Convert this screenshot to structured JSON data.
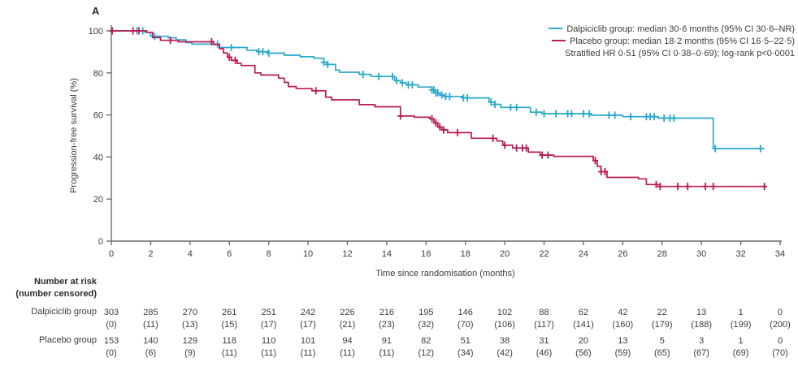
{
  "panel_label": "A",
  "y_axis": {
    "label": "Progression-free survival (%)",
    "ticks": [
      0,
      20,
      40,
      60,
      80,
      100
    ]
  },
  "x_axis": {
    "label": "Time since randomisation (months)",
    "ticks": [
      0,
      2,
      4,
      6,
      8,
      10,
      12,
      14,
      16,
      18,
      20,
      22,
      24,
      26,
      28,
      30,
      32,
      34
    ]
  },
  "legend": {
    "entries": [
      {
        "label": "Dalpiciclib group: median 30·6 months (95% CI 30·6–NR)",
        "color": "#29a8cb"
      },
      {
        "label": "Placebo group: median 18·2 months (95% CI 16·5–22·5)",
        "color": "#ba1a52"
      }
    ],
    "note": "Stratified HR 0·51 (95% CI 0·38–0·69); log-rank p<0·0001"
  },
  "risk_table": {
    "header_line1": "Number at risk",
    "header_line2": "(number censored)",
    "time_points": [
      0,
      2,
      4,
      6,
      8,
      10,
      12,
      14,
      16,
      18,
      20,
      22,
      24,
      26,
      28,
      30,
      32,
      34
    ],
    "rows": [
      {
        "label": "Dalpiciclib group",
        "at_risk": [
          "303",
          "285",
          "270",
          "261",
          "251",
          "242",
          "226",
          "216",
          "195",
          "146",
          "102",
          "88",
          "62",
          "42",
          "22",
          "13",
          "1",
          "0"
        ],
        "censored": [
          "(0)",
          "(11)",
          "(13)",
          "(15)",
          "(17)",
          "(17)",
          "(21)",
          "(23)",
          "(32)",
          "(70)",
          "(106)",
          "(117)",
          "(141)",
          "(160)",
          "(179)",
          "(188)",
          "(199)",
          "(200)"
        ]
      },
      {
        "label": "Placebo group",
        "at_risk": [
          "153",
          "140",
          "129",
          "118",
          "110",
          "101",
          "94",
          "91",
          "82",
          "51",
          "38",
          "31",
          "20",
          "13",
          "5",
          "3",
          "1",
          "0"
        ],
        "censored": [
          "(0)",
          "(6)",
          "(9)",
          "(11)",
          "(11)",
          "(11)",
          "(11)",
          "(11)",
          "(12)",
          "(34)",
          "(42)",
          "(46)",
          "(56)",
          "(59)",
          "(65)",
          "(67)",
          "(69)",
          "(70)"
        ]
      }
    ]
  },
  "chart_data": {
    "type": "line",
    "subtype": "kaplan-meier-step",
    "title": "",
    "xlabel": "Time since randomisation (months)",
    "ylabel": "Progression-free survival (%)",
    "xlim": [
      0,
      34
    ],
    "ylim": [
      0,
      100
    ],
    "x_ticks": [
      0,
      2,
      4,
      6,
      8,
      10,
      12,
      14,
      16,
      18,
      20,
      22,
      24,
      26,
      28,
      30,
      32,
      34
    ],
    "y_ticks": [
      0,
      20,
      40,
      60,
      80,
      100
    ],
    "grid": false,
    "legend_position": "top-right",
    "axis_color": "#6b6b6b",
    "series": [
      {
        "name": "Dalpiciclib group",
        "color": "#29a8cb",
        "median_months": "30·6",
        "ci": "30·6–NR",
        "steps": [
          [
            0,
            100
          ],
          [
            1.7,
            99.3
          ],
          [
            2.0,
            97.4
          ],
          [
            2.9,
            96.7
          ],
          [
            3.3,
            95.7
          ],
          [
            3.8,
            94.4
          ],
          [
            4.1,
            93.7
          ],
          [
            5.5,
            92.1
          ],
          [
            6.9,
            90.8
          ],
          [
            7.4,
            90.1
          ],
          [
            8.0,
            89.4
          ],
          [
            8.8,
            88.4
          ],
          [
            9.6,
            87.7
          ],
          [
            10.3,
            87.0
          ],
          [
            10.8,
            85.0
          ],
          [
            11.0,
            84.0
          ],
          [
            11.4,
            81.3
          ],
          [
            11.6,
            80.3
          ],
          [
            12.6,
            79.3
          ],
          [
            13.2,
            78.3
          ],
          [
            14.4,
            76.3
          ],
          [
            14.7,
            75.3
          ],
          [
            15.0,
            74.3
          ],
          [
            15.6,
            73.3
          ],
          [
            16.3,
            71.9
          ],
          [
            16.5,
            70.5
          ],
          [
            16.7,
            69.5
          ],
          [
            16.9,
            68.8
          ],
          [
            17.9,
            68.1
          ],
          [
            19.2,
            66.1
          ],
          [
            19.5,
            65.0
          ],
          [
            19.8,
            63.6
          ],
          [
            21.3,
            61.3
          ],
          [
            21.9,
            60.6
          ],
          [
            24.4,
            59.9
          ],
          [
            26.0,
            59.2
          ],
          [
            27.8,
            58.5
          ],
          [
            30.6,
            44.0
          ],
          [
            33.2,
            44.0
          ]
        ],
        "censor_times": [
          1.3,
          1.6,
          2.2,
          5.4,
          6.1,
          7.5,
          7.7,
          8.0,
          10.8,
          11.0,
          12.8,
          13.6,
          14.3,
          14.5,
          14.8,
          15.1,
          15.3,
          16.3,
          16.4,
          16.5,
          16.6,
          16.8,
          17.0,
          17.2,
          17.9,
          18.1,
          19.3,
          19.5,
          20.3,
          20.6,
          21.6,
          22.0,
          22.6,
          23.2,
          23.4,
          24.0,
          24.3,
          25.3,
          25.6,
          26.4,
          27.2,
          27.4,
          27.6,
          28.1,
          28.4,
          28.6,
          30.7,
          33.0
        ]
      },
      {
        "name": "Placebo group",
        "color": "#ba1a52",
        "median_months": "18·2",
        "ci": "16·5–22·5",
        "steps": [
          [
            0,
            100
          ],
          [
            1.8,
            99.3
          ],
          [
            2.1,
            96.8
          ],
          [
            2.5,
            95.5
          ],
          [
            3.4,
            94.8
          ],
          [
            5.2,
            93.5
          ],
          [
            5.5,
            91.5
          ],
          [
            5.7,
            89.5
          ],
          [
            5.9,
            87.5
          ],
          [
            6.1,
            86.0
          ],
          [
            6.4,
            84.5
          ],
          [
            6.6,
            83.5
          ],
          [
            7.3,
            80.0
          ],
          [
            7.6,
            79.0
          ],
          [
            8.5,
            77.5
          ],
          [
            8.8,
            75.5
          ],
          [
            9.0,
            73.5
          ],
          [
            9.4,
            72.5
          ],
          [
            10.2,
            71.5
          ],
          [
            10.9,
            68.5
          ],
          [
            11.2,
            67.2
          ],
          [
            12.6,
            64.9
          ],
          [
            13.4,
            63.9
          ],
          [
            14.7,
            59.5
          ],
          [
            15.4,
            58.9
          ],
          [
            16.2,
            58.2
          ],
          [
            16.4,
            56.2
          ],
          [
            16.6,
            54.3
          ],
          [
            16.8,
            52.9
          ],
          [
            17.1,
            51.6
          ],
          [
            18.3,
            48.9
          ],
          [
            19.6,
            47.6
          ],
          [
            19.9,
            45.6
          ],
          [
            20.4,
            44.3
          ],
          [
            21.2,
            42.3
          ],
          [
            21.8,
            40.9
          ],
          [
            22.5,
            40.3
          ],
          [
            24.5,
            38.3
          ],
          [
            24.7,
            35.6
          ],
          [
            24.9,
            33.0
          ],
          [
            25.2,
            30.3
          ],
          [
            26.8,
            29.6
          ],
          [
            27.2,
            26.9
          ],
          [
            27.9,
            26.0
          ],
          [
            33.3,
            26.0
          ]
        ],
        "censor_times": [
          0.05,
          1.1,
          1.4,
          3.0,
          5.1,
          6.0,
          6.3,
          10.4,
          14.7,
          16.3,
          16.5,
          16.7,
          16.9,
          17.6,
          19.4,
          20.0,
          20.6,
          20.9,
          21.1,
          21.9,
          22.2,
          24.6,
          24.9,
          25.1,
          27.7,
          27.9,
          28.8,
          29.3,
          30.2,
          30.6,
          33.2
        ]
      }
    ]
  }
}
